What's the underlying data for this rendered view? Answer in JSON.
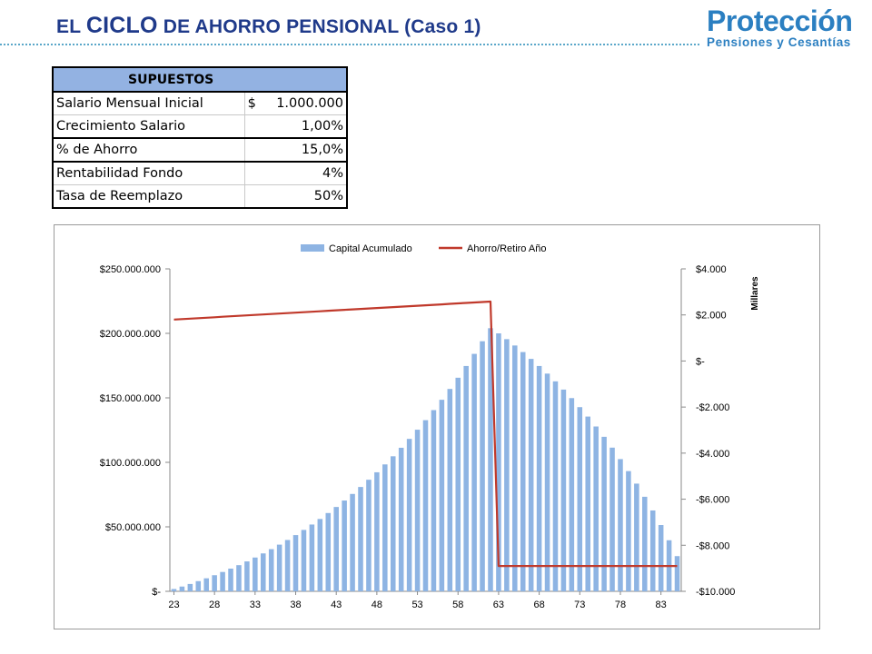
{
  "page": {
    "title_parts": [
      "EL ",
      "CICLO",
      " DE AHORRO  PENSIONAL (Caso 1)"
    ]
  },
  "logo": {
    "brand": "Protección",
    "tagline": "Pensiones y Cesantías"
  },
  "supuestos": {
    "header": "SUPUESTOS",
    "rows": [
      {
        "label": "Salario Mensual Inicial",
        "currency": "$",
        "value": "1.000.000"
      },
      {
        "label": "Crecimiento Salario",
        "currency": "",
        "value": "1,00%"
      },
      {
        "label": "% de Ahorro",
        "currency": "",
        "value": "15,0%"
      },
      {
        "label": "Rentabilidad Fondo",
        "currency": "",
        "value": "4%"
      },
      {
        "label": "Tasa de Reemplazo",
        "currency": "",
        "value": "50%"
      }
    ]
  },
  "chart_data": {
    "type": "bar",
    "title": "",
    "legend": {
      "position": "top",
      "entries": [
        "Capital Acumulado",
        "Ahorro/Retiro Año"
      ]
    },
    "x": [
      23,
      24,
      25,
      26,
      27,
      28,
      29,
      30,
      31,
      32,
      33,
      34,
      35,
      36,
      37,
      38,
      39,
      40,
      41,
      42,
      43,
      44,
      45,
      46,
      47,
      48,
      49,
      50,
      51,
      52,
      53,
      54,
      55,
      56,
      57,
      58,
      59,
      60,
      61,
      62,
      63,
      64,
      65,
      66,
      67,
      68,
      69,
      70,
      71,
      72,
      73,
      74,
      75,
      76,
      77,
      78,
      79,
      80,
      81,
      82,
      83,
      84,
      85
    ],
    "x_ticks": [
      "23",
      "28",
      "33",
      "38",
      "43",
      "48",
      "53",
      "58",
      "63",
      "68",
      "73",
      "78",
      "83"
    ],
    "xlim": [
      22.5,
      85.5
    ],
    "series": [
      {
        "name": "Capital Acumulado",
        "axis": "left",
        "render": "bar",
        "color": "#8eb4e3",
        "values": [
          1800000,
          3700000,
          5700000,
          7900000,
          10100000,
          12500000,
          15000000,
          17600000,
          20300000,
          23200000,
          26200000,
          29400000,
          32700000,
          36200000,
          39800000,
          43600000,
          47600000,
          51800000,
          56100000,
          60700000,
          65400000,
          70400000,
          75500000,
          80900000,
          86500000,
          92300000,
          98400000,
          104700000,
          111300000,
          118200000,
          125300000,
          132700000,
          140500000,
          148500000,
          156900000,
          165600000,
          174700000,
          184100000,
          193900000,
          204000000,
          200000000,
          195500000,
          190600000,
          185500000,
          180200000,
          174700000,
          168800000,
          162800000,
          156400000,
          149800000,
          142800000,
          135500000,
          127800000,
          119800000,
          111400000,
          102500000,
          93200000,
          83500000,
          73300000,
          62700000,
          51400000,
          39600000,
          27300000
        ]
      },
      {
        "name": "Ahorro/Retiro Año",
        "axis": "right",
        "render": "line",
        "color": "#c0392b",
        "values": [
          1800,
          1820,
          1840,
          1860,
          1880,
          1900,
          1920,
          1940,
          1960,
          1980,
          2000,
          2020,
          2040,
          2060,
          2080,
          2100,
          2120,
          2140,
          2160,
          2180,
          2200,
          2220,
          2240,
          2260,
          2280,
          2300,
          2320,
          2340,
          2360,
          2380,
          2400,
          2420,
          2440,
          2460,
          2480,
          2500,
          2520,
          2540,
          2560,
          2580,
          -8900,
          -8900,
          -8900,
          -8900,
          -8900,
          -8900,
          -8900,
          -8900,
          -8900,
          -8900,
          -8900,
          -8900,
          -8900,
          -8900,
          -8900,
          -8900,
          -8900,
          -8900,
          -8900,
          -8900,
          -8900,
          -8900,
          -8900
        ]
      }
    ],
    "y_left": {
      "ylim": [
        0,
        250000000
      ],
      "ticks": [
        0,
        50000000,
        100000000,
        150000000,
        200000000,
        250000000
      ],
      "tick_labels": [
        "$-",
        "$50.000.000",
        "$100.000.000",
        "$150.000.000",
        "$200.000.000",
        "$250.000.000"
      ]
    },
    "y_right": {
      "label": "Millares",
      "ylim": [
        -10000,
        4000
      ],
      "ticks": [
        -10000,
        -8000,
        -6000,
        -4000,
        -2000,
        0,
        2000,
        4000
      ],
      "tick_labels": [
        "-$10.000",
        "-$8.000",
        "-$6.000",
        "-$4.000",
        "-$2.000",
        "$-",
        "$2.000",
        "$4.000"
      ]
    },
    "grid": false
  }
}
